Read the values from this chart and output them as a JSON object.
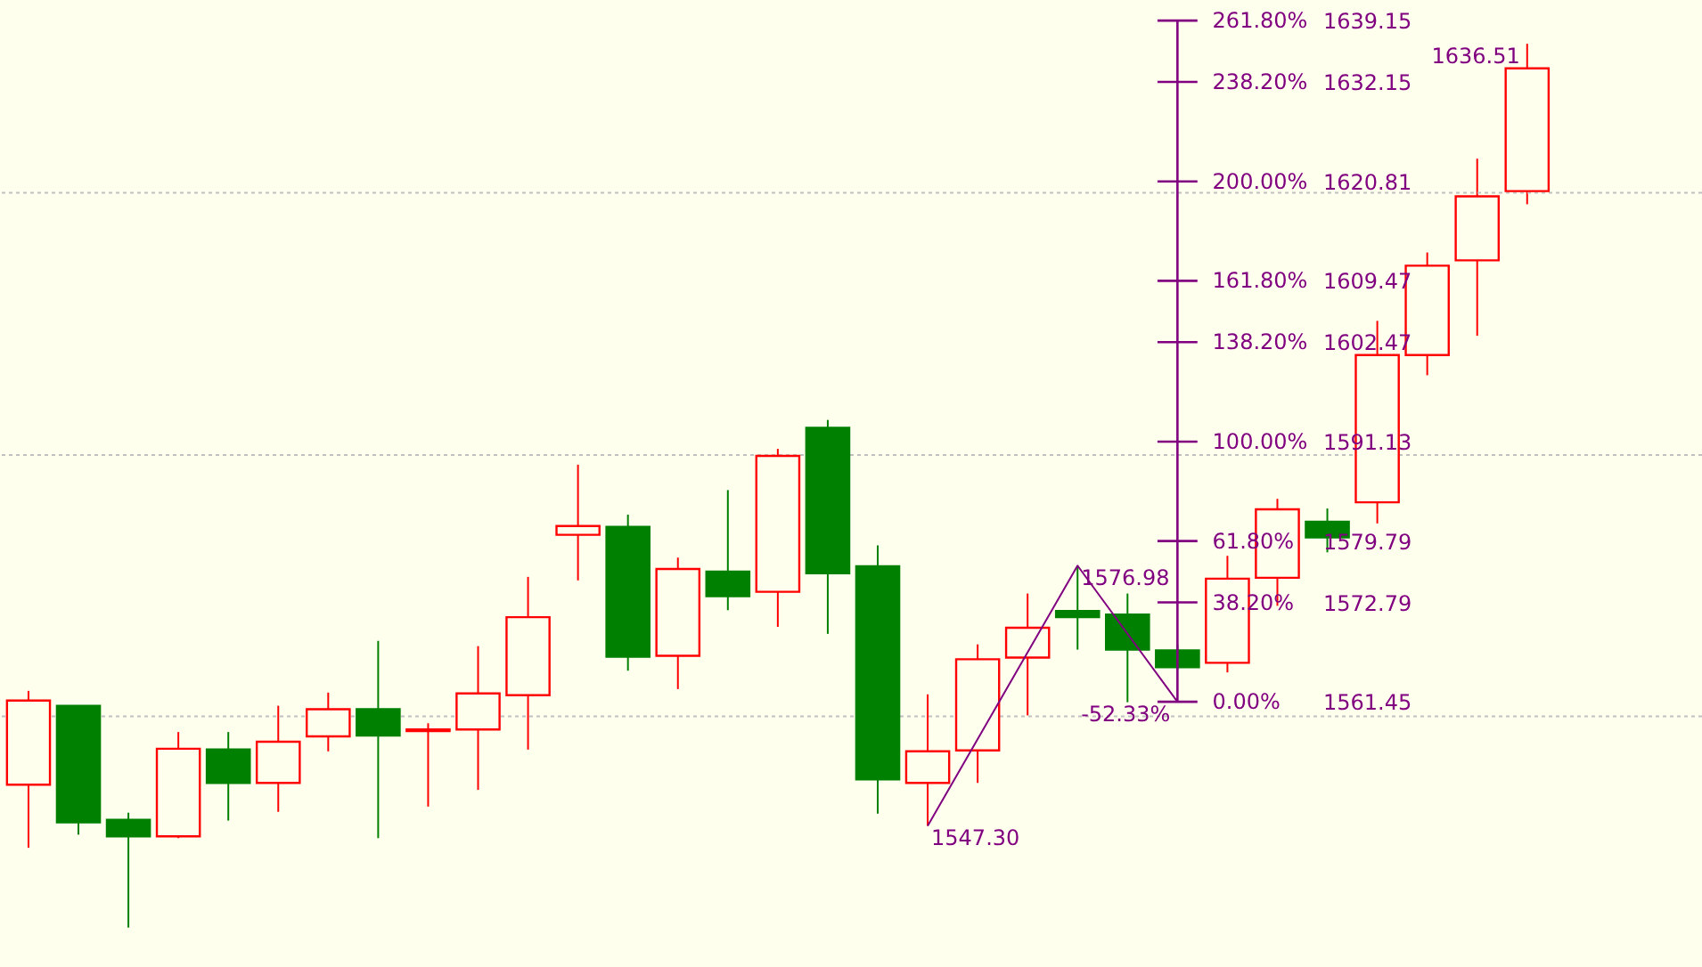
{
  "chart_data": {
    "type": "candlestick",
    "categories": [
      null,
      null,
      null,
      null,
      null,
      null,
      null,
      null,
      null,
      null,
      null,
      null,
      null,
      null,
      null,
      null,
      null,
      null,
      null,
      null,
      null,
      null,
      null,
      null,
      null,
      null,
      null,
      null,
      null,
      null,
      null
    ],
    "ohlc": [
      [
        1552.0,
        1562.7,
        1544.8,
        1561.6
      ],
      [
        1561.0,
        1561.0,
        1546.3,
        1547.7
      ],
      [
        1548.0,
        1548.8,
        1535.7,
        1546.1
      ],
      [
        1546.1,
        1558.0,
        1545.9,
        1556.1
      ],
      [
        1556.0,
        1558.0,
        1547.9,
        1552.2
      ],
      [
        1552.2,
        1561.0,
        1548.9,
        1556.9
      ],
      [
        1557.5,
        1562.5,
        1555.8,
        1560.6
      ],
      [
        1560.6,
        1568.4,
        1545.9,
        1557.6
      ],
      [
        1558.1,
        1559.0,
        1549.5,
        1558.3
      ],
      [
        1558.3,
        1567.8,
        1551.4,
        1562.4
      ],
      [
        1562.2,
        1575.7,
        1556.0,
        1571.1
      ],
      [
        1580.5,
        1588.5,
        1575.3,
        1581.5
      ],
      [
        1581.4,
        1582.8,
        1565.0,
        1566.6
      ],
      [
        1566.7,
        1577.9,
        1562.9,
        1576.6
      ],
      [
        1576.3,
        1585.6,
        1571.9,
        1573.5
      ],
      [
        1574.0,
        1590.3,
        1570.0,
        1589.5
      ],
      [
        1592.7,
        1593.6,
        1569.2,
        1576.1
      ],
      [
        1576.9,
        1579.3,
        1548.7,
        1552.6
      ],
      [
        1552.2,
        1562.3,
        1547.3,
        1555.8
      ],
      [
        1555.9,
        1568.0,
        1552.2,
        1566.3
      ],
      [
        1566.5,
        1573.8,
        1559.9,
        1569.9
      ],
      [
        1571.8,
        1576.98,
        1567.4,
        1571.1
      ],
      [
        1571.4,
        1573.8,
        1561.4,
        1567.4
      ],
      [
        1567.3,
        1568.0,
        1565.1,
        1565.4
      ],
      [
        1565.9,
        1578.1,
        1564.8,
        1575.5
      ],
      [
        1575.6,
        1584.6,
        1572.4,
        1583.4
      ],
      [
        1582.0,
        1583.5,
        1578.5,
        1580.2
      ],
      [
        1584.2,
        1604.9,
        1581.8,
        1601.0
      ],
      [
        1601.0,
        1612.7,
        1598.7,
        1611.2
      ],
      [
        1611.8,
        1623.4,
        1603.2,
        1619.1
      ],
      [
        1619.7,
        1636.51,
        1618.2,
        1633.7
      ]
    ],
    "colors": [
      "#ff0000",
      "#008000",
      "#008000",
      "#ff0000",
      "#008000",
      "#ff0000",
      "#ff0000",
      "#008000",
      "#ff0000",
      "#ff0000",
      "#ff0000",
      "#ff0000",
      "#008000",
      "#ff0000",
      "#008000",
      "#ff0000",
      "#008000",
      "#008000",
      "#ff0000",
      "#ff0000",
      "#ff0000",
      "#008000",
      "#008000",
      "#008000",
      "#ff0000",
      "#ff0000",
      "#008000",
      "#ff0000",
      "#ff0000",
      "#ff0000",
      "#ff0000"
    ],
    "series": [
      {
        "type": "line",
        "color": "#800080",
        "values": [
          null,
          null,
          null,
          null,
          null,
          null,
          null,
          null,
          null,
          null,
          null,
          null,
          null,
          null,
          null,
          null,
          null,
          null,
          1547.3,
          null,
          null,
          1576.98,
          null,
          1561.45,
          null,
          null,
          null,
          null,
          null,
          null,
          null
        ]
      }
    ],
    "ref_lines": [
      {
        "axis": "y",
        "value": 1559.8,
        "color": "#c0c0c0",
        "line_style": "dotted"
      },
      {
        "axis": "y",
        "value": 1589.6,
        "color": "#c0c0c0",
        "line_style": "dotted"
      },
      {
        "axis": "y",
        "value": 1619.5,
        "color": "#c0c0c0",
        "line_style": "dotted"
      }
    ],
    "annotations": [
      "1547.30",
      "1576.98",
      "-52.33%",
      "1636.51",
      "261.80%",
      "238.20%",
      "200.00%",
      "161.80%",
      "138.20%",
      "100.00%",
      "61.80%",
      "38.20%",
      "0.00%"
    ],
    "ylim": [
      1531.2,
      1641.5
    ],
    "yticks": [
      1639.15,
      1632.15,
      1620.81,
      1609.47,
      1602.47,
      1591.13,
      1579.79,
      1572.79,
      1561.45
    ],
    "tick_labels": "y"
  }
}
